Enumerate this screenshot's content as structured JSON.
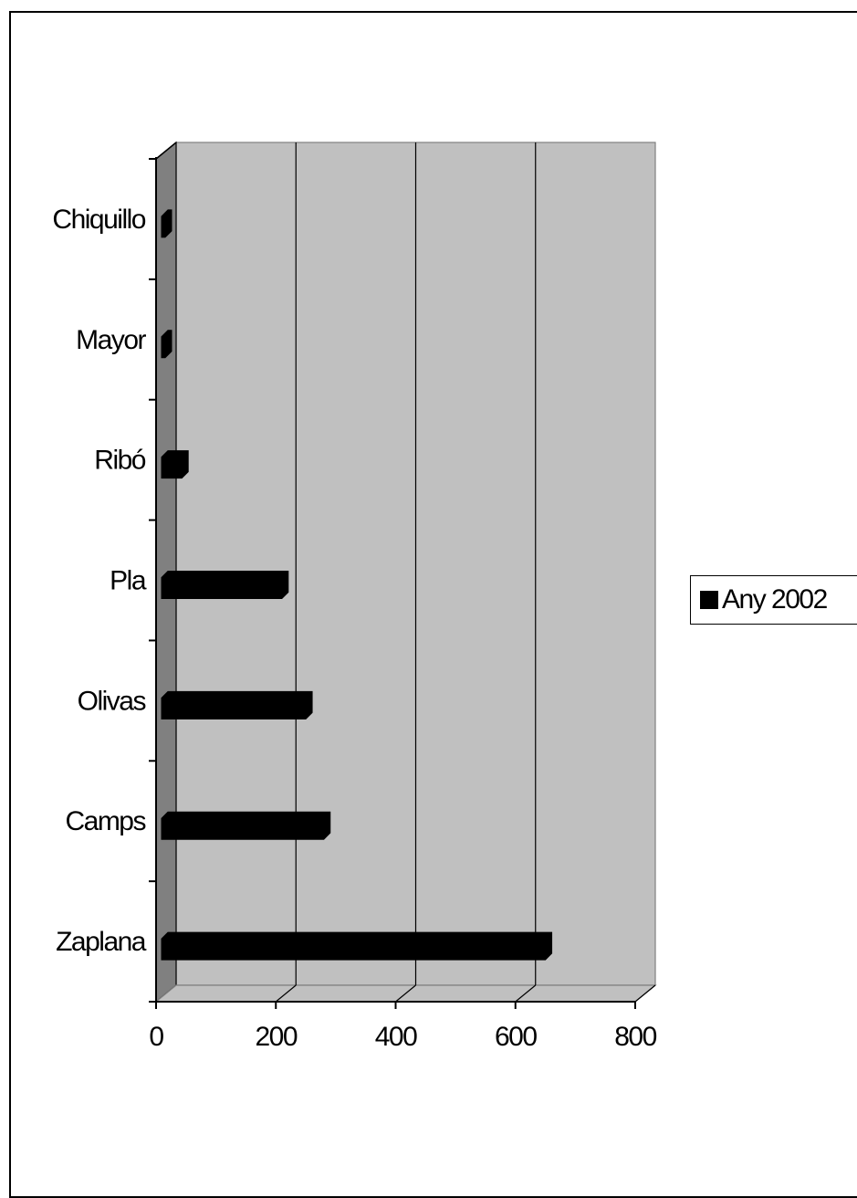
{
  "chart_data": {
    "type": "bar",
    "orientation": "horizontal",
    "three_d": true,
    "title": "",
    "xlabel": "",
    "ylabel": "",
    "categories": [
      "Chiquillo",
      "Mayor",
      "Ribó",
      "Pla",
      "Olivas",
      "Camps",
      "Zaplana"
    ],
    "series": [
      {
        "name": "Any 2002",
        "values": [
          5,
          8,
          43,
          210,
          250,
          280,
          650
        ]
      }
    ],
    "xlim": [
      0,
      800
    ],
    "xticks": [
      "0",
      "200",
      "400",
      "600",
      "800"
    ],
    "grid": true,
    "legend_position": "right",
    "colors": {
      "bar": "#000000",
      "wall": "#c0c0c0",
      "side_wall": "#808080",
      "floor": "#c0c0c0"
    }
  }
}
